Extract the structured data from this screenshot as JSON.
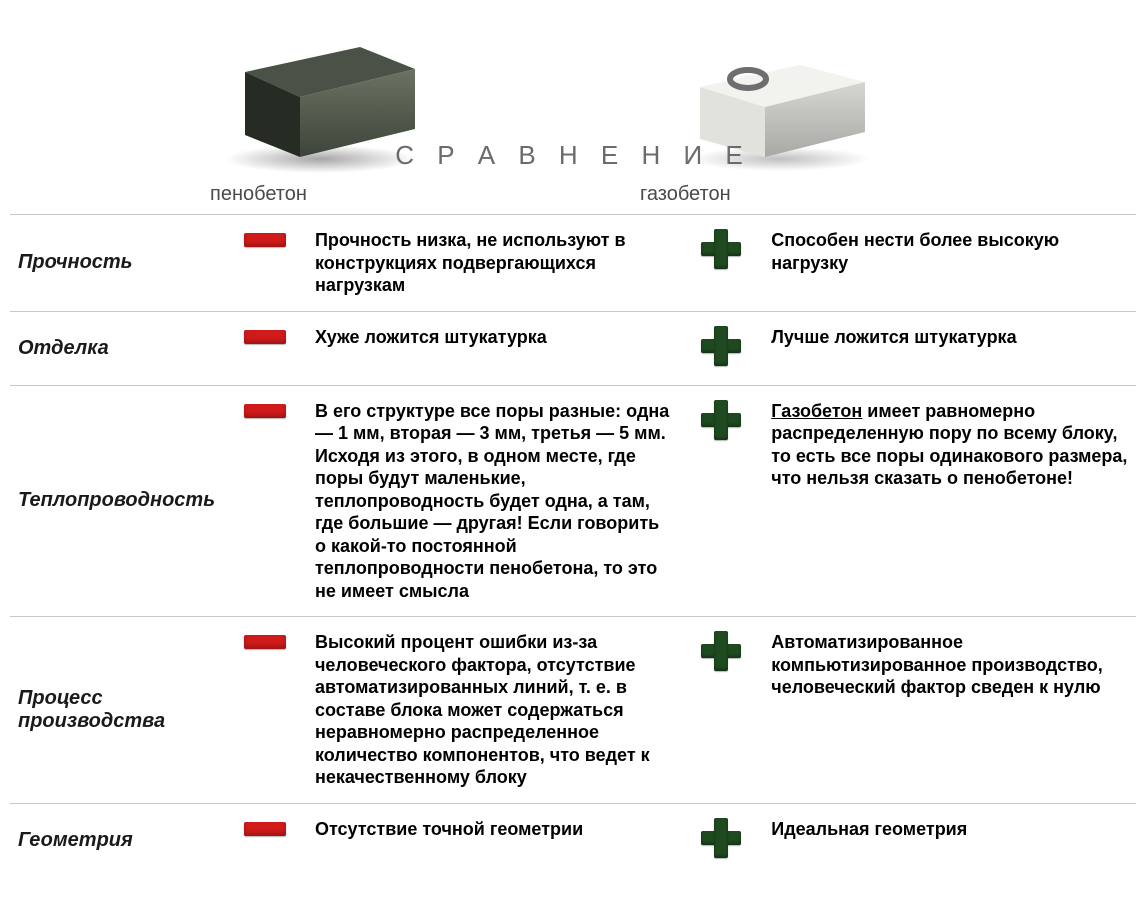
{
  "title": "С Р А В Н Е Н И Е",
  "materials": {
    "foam": {
      "label": "пенобетон"
    },
    "gas": {
      "label": "газобетон"
    }
  },
  "colors": {
    "minus": "#d11a1a",
    "plus": "#1f4a20",
    "background": "#ffffff",
    "text": "#000000",
    "rule": "#c8c8c8",
    "title_gray": "#6b6b6b"
  },
  "illustrations": {
    "foam_block": {
      "top": "#4a5248",
      "left": "#2a2f28",
      "front": "#5d6658",
      "shadow": "rgba(0,0,0,0.35)"
    },
    "gas_block": {
      "top": "#f4f4f2",
      "left": "#e8e8e4",
      "front": "#c2c2be",
      "ring": "#6e6e6e",
      "shadow": "rgba(0,0,0,0.25)"
    }
  },
  "rows": [
    {
      "label": "Прочность",
      "foam_icon": "minus",
      "foam_text": "Прочность низка, не используют в конструкциях подвергающихся нагрузкам",
      "gas_icon": "plus",
      "gas_text": "Способен нести более высокую нагрузку"
    },
    {
      "label": "Отделка",
      "foam_icon": "minus",
      "foam_text": "Хуже ложится штукатурка",
      "gas_icon": "plus",
      "gas_text": "Лучше ложится штукатурка"
    },
    {
      "label": "Теплопроводность",
      "foam_icon": "minus",
      "foam_text": "В его структуре все поры разные: одна — 1 мм, вторая — 3 мм, третья — 5 мм. Исходя из этого, в одном месте, где поры будут маленькие, теплопроводность будет одна, а там, где большие — другая! Если говорить о какой-то постоянной теплопроводности пенобетона, то это не имеет смысла",
      "gas_icon": "plus",
      "gas_lead": "Газобетон",
      "gas_text": " имеет равномерно распределенную пору по всему блоку, то есть все поры одинакового размера, что нельзя сказать о пенобетоне!"
    },
    {
      "label": "Процесс производства",
      "foam_icon": "minus",
      "foam_text": "Высокий процент ошибки из-за человеческого фактора, отсутствие автоматизированных линий, т. е. в составе блока может содержаться неравномерно распределенное количество компонентов, что ведет к некачественному блоку",
      "gas_icon": "plus",
      "gas_text": "Автоматизированное компьютизированное производство, человеческий фактор сведен к нулю"
    },
    {
      "label": "Геометрия",
      "foam_icon": "minus",
      "foam_text": "Отсутствие точной геометрии",
      "gas_icon": "plus",
      "gas_text": "Идеальная геометрия"
    }
  ]
}
